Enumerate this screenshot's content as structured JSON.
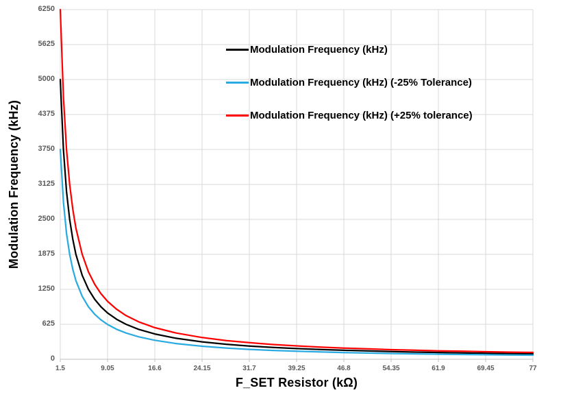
{
  "chart_data": {
    "type": "line",
    "title": "",
    "xlabel": "F_SET Resistor (kΩ)",
    "ylabel": "Modulation Frequency (kHz)",
    "xlim": [
      1.5,
      77
    ],
    "ylim": [
      0,
      6250
    ],
    "grid": true,
    "legend_position": "top-center-inside",
    "x_ticks": [
      1.5,
      9.05,
      16.6,
      24.15,
      31.7,
      39.25,
      46.8,
      54.35,
      61.9,
      69.45,
      77
    ],
    "y_ticks": [
      0,
      625,
      1250,
      1875,
      2500,
      3125,
      3750,
      4375,
      5000,
      5625,
      6250
    ],
    "colors": {
      "grid": "#D9D9D9",
      "axis_line": "#BFBFBF",
      "tick_label": "#595959"
    },
    "x": [
      1.5,
      2,
      2.5,
      3,
      3.5,
      4,
      5,
      6,
      7,
      8,
      9.05,
      10.5,
      12,
      14,
      16.6,
      20,
      24.15,
      28,
      31.7,
      35.5,
      39.25,
      43,
      46.8,
      50.5,
      54.35,
      58,
      61.9,
      65.7,
      69.45,
      73.2,
      77
    ],
    "series": [
      {
        "name": "Modulation Frequency (kHz)",
        "color": "#000000",
        "values": [
          5000,
          3750,
          3000,
          2500,
          2143,
          1875,
          1500,
          1250,
          1071,
          938,
          829,
          714,
          625,
          536,
          452,
          375,
          311,
          268,
          237,
          211,
          191,
          174,
          160,
          149,
          138,
          129,
          121,
          114,
          108,
          102,
          97
        ]
      },
      {
        "name": "Modulation Frequency (kHz) (-25% Tolerance)",
        "color": "#29ABE2",
        "values": [
          3750,
          2813,
          2250,
          1875,
          1607,
          1406,
          1125,
          938,
          804,
          703,
          622,
          536,
          469,
          402,
          339,
          281,
          233,
          201,
          177,
          158,
          143,
          131,
          120,
          111,
          103,
          97,
          91,
          86,
          81,
          77,
          73
        ]
      },
      {
        "name": "Modulation Frequency (kHz) (+25% tolerance)",
        "color": "#FF0000",
        "values": [
          6250,
          4688,
          3750,
          3125,
          2679,
          2344,
          1875,
          1563,
          1339,
          1172,
          1036,
          893,
          781,
          670,
          565,
          469,
          388,
          335,
          296,
          264,
          239,
          218,
          200,
          186,
          172,
          162,
          151,
          143,
          135,
          128,
          122
        ]
      }
    ]
  }
}
